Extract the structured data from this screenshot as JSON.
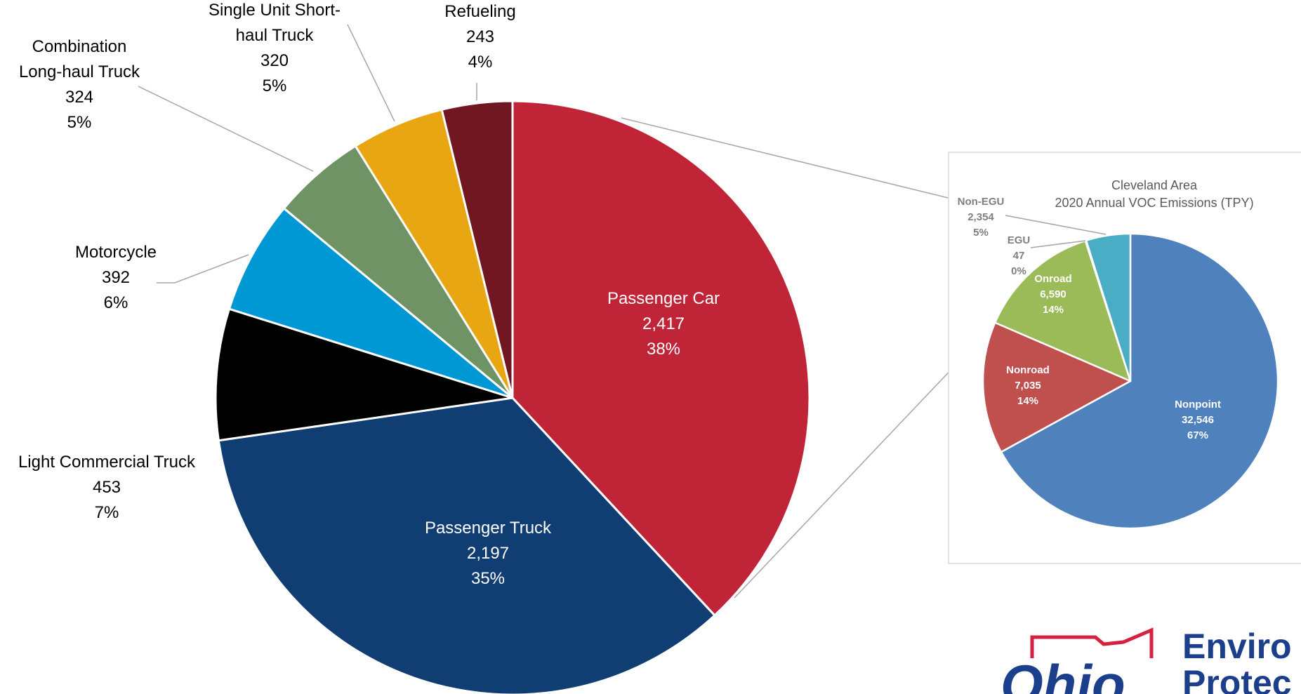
{
  "chart_data": [
    {
      "type": "pie",
      "title": "",
      "start_angle_deg": 0,
      "direction": "clockwise",
      "slices": [
        {
          "label": "Passenger Car",
          "value": "2,417",
          "percent": "38%",
          "color": "#c02537",
          "label_inside": true,
          "label_color": "#ffffff"
        },
        {
          "label": "Passenger Truck",
          "value": "2,197",
          "percent": "35%",
          "color": "#113e72",
          "label_inside": true,
          "label_color": "#ffffff"
        },
        {
          "label": "Light Commercial Truck",
          "value": "453",
          "percent": "7%",
          "color": "#000000",
          "label_inside": false,
          "label_color": "#000000"
        },
        {
          "label": "Motorcycle",
          "value": "392",
          "percent": "6%",
          "color": "#0098d4",
          "label_inside": false,
          "label_color": "#000000"
        },
        {
          "label": "Combination Long-haul Truck",
          "value": "324",
          "percent": "5%",
          "color": "#6f9364",
          "label_inside": false,
          "label_color": "#000000"
        },
        {
          "label": "Single Unit Short-haul Truck",
          "value": "320",
          "percent": "5%",
          "color": "#e8a612",
          "label_inside": false,
          "label_color": "#000000"
        },
        {
          "label": "Refueling",
          "value": "243",
          "percent": "4%",
          "color": "#711721",
          "label_inside": false,
          "label_color": "#000000"
        }
      ]
    },
    {
      "type": "pie",
      "title": "Cleveland Area",
      "subtitle": "2020 Annual VOC Emissions (TPY)",
      "start_angle_deg": 0,
      "direction": "clockwise",
      "slices": [
        {
          "label": "Nonpoint",
          "value": "32,546",
          "percent": "67%",
          "color": "#4f81bd",
          "label_inside": true,
          "label_color": "#ffffff"
        },
        {
          "label": "Nonroad",
          "value": "7,035",
          "percent": "14%",
          "color": "#c0504d",
          "label_inside": true,
          "label_color": "#ffffff"
        },
        {
          "label": "Onroad",
          "value": "6,590",
          "percent": "14%",
          "color": "#9bbb59",
          "label_inside": true,
          "label_color": "#ffffff"
        },
        {
          "label": "EGU",
          "value": "47",
          "percent": "0%",
          "color": "#8064a2",
          "label_inside": false,
          "label_color": "#7f7f7f"
        },
        {
          "label": "Non-EGU",
          "value": "2,354",
          "percent": "5%",
          "color": "#4bacc6",
          "label_inside": false,
          "label_color": "#7f7f7f"
        }
      ]
    }
  ],
  "logo": {
    "state": "Ohio",
    "line1": "Enviro",
    "line2": "Protec",
    "color_primary": "#1b3f8b",
    "color_accent": "#d6203f"
  }
}
